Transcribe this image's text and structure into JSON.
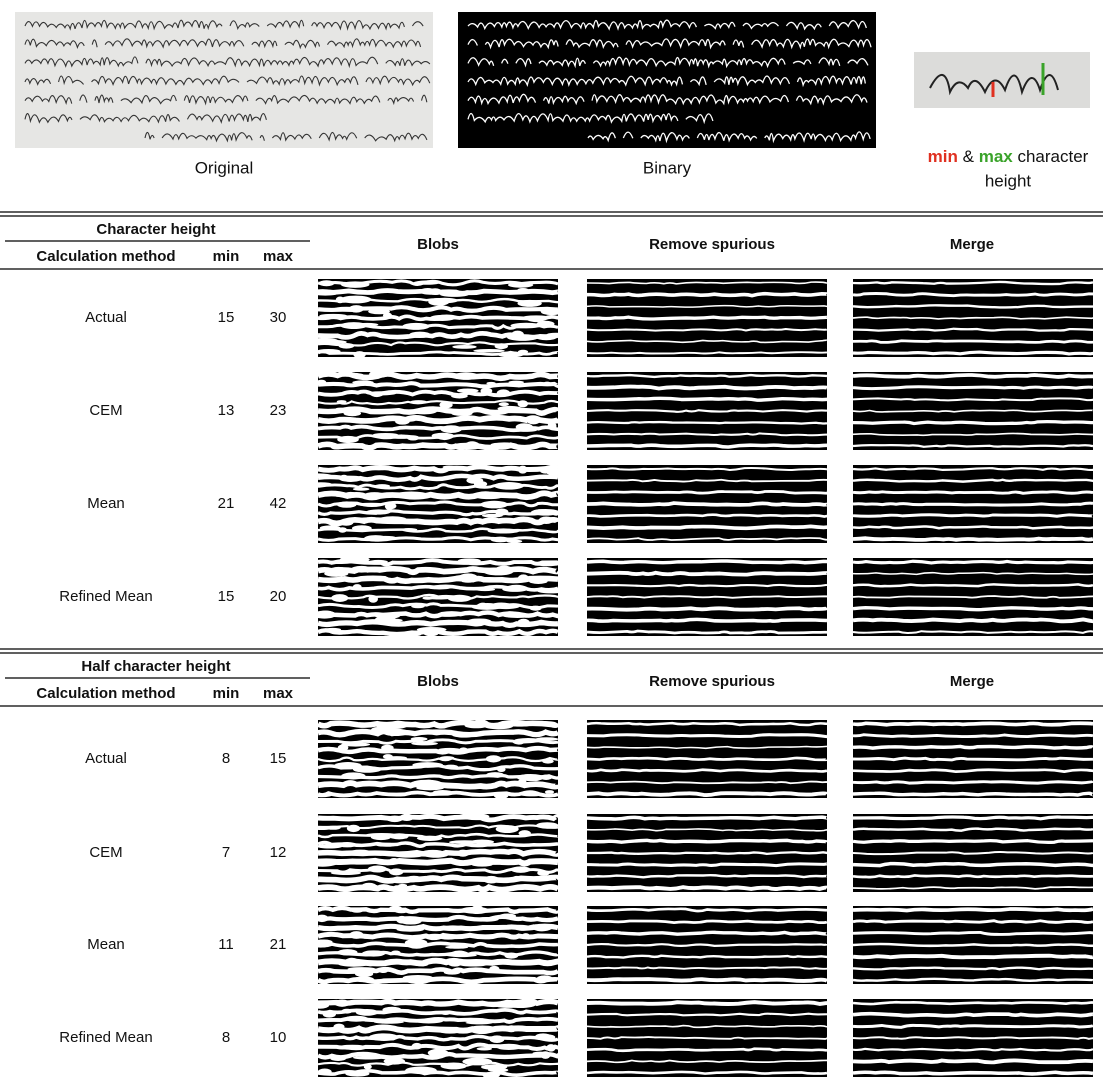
{
  "figure": {
    "images": [
      {
        "caption": "Original"
      },
      {
        "caption": "Binary"
      }
    ],
    "crop_caption": {
      "min": "min",
      "and": "&",
      "max": "max",
      "line1_rest": "character",
      "line2": "height"
    }
  },
  "tables": [
    {
      "group_header": "Character height",
      "columns": {
        "method": "Calculation method",
        "min": "min",
        "max": "max",
        "images": [
          "Blobs",
          "Remove spurious",
          "Merge"
        ]
      },
      "rows": [
        [
          "Actual",
          15,
          30
        ],
        [
          "CEM",
          13,
          23
        ],
        [
          "Mean",
          21,
          42
        ],
        [
          "Refined Mean",
          15,
          20
        ]
      ]
    },
    {
      "group_header": "Half character height",
      "columns": {
        "method": "Calculation method",
        "min": "min",
        "max": "max",
        "images": [
          "Blobs",
          "Remove spurious",
          "Merge"
        ]
      },
      "rows": [
        [
          "Actual",
          8,
          15
        ],
        [
          "CEM",
          7,
          12
        ],
        [
          "Mean",
          11,
          21
        ],
        [
          "Refined Mean",
          8,
          10
        ]
      ]
    }
  ]
}
